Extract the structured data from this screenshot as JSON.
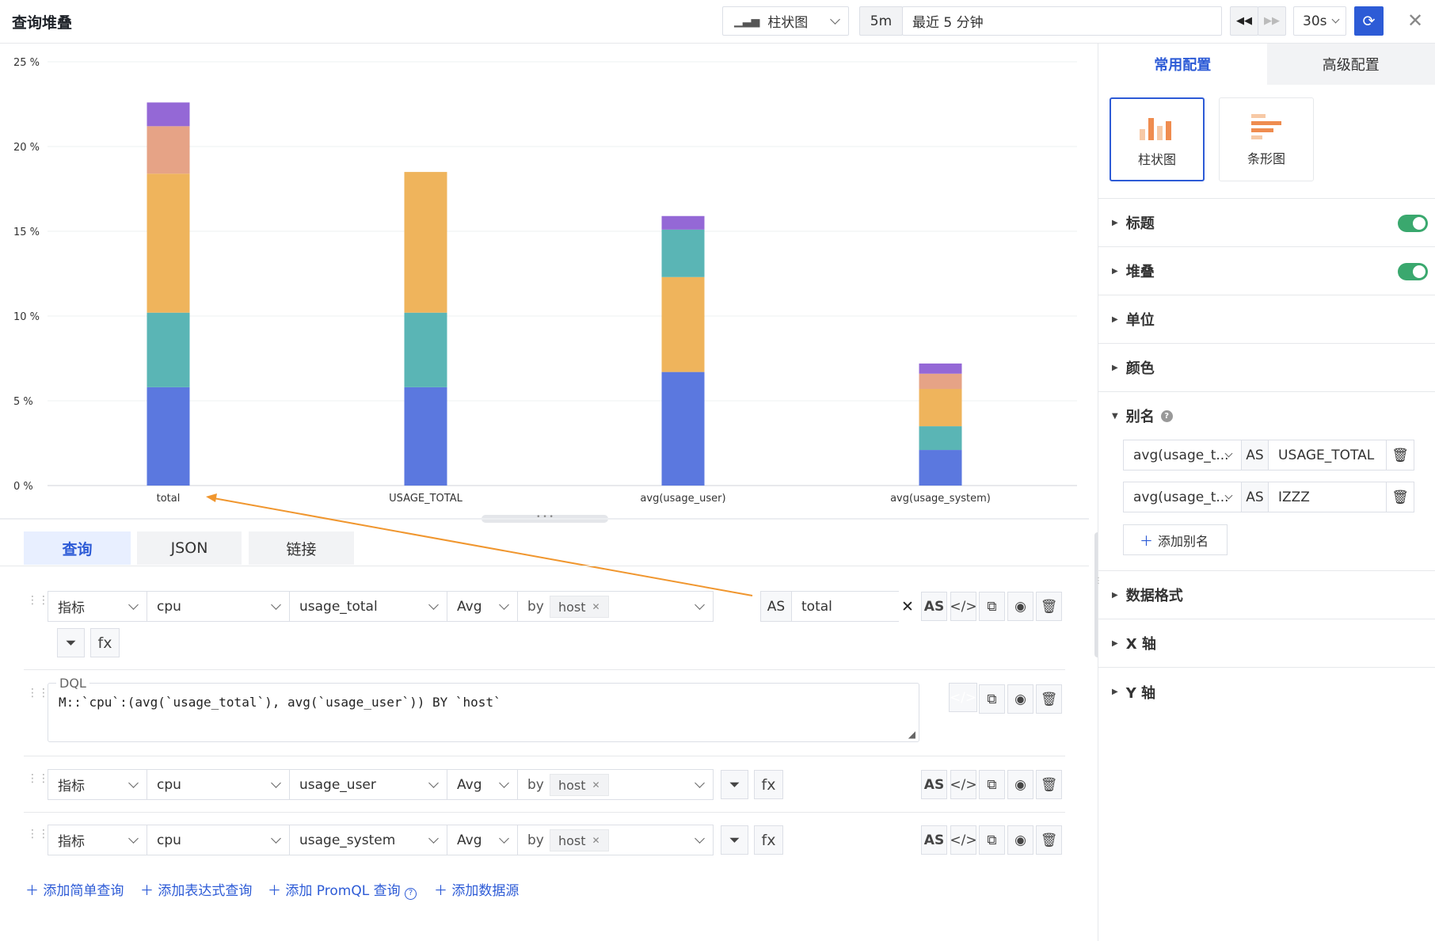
{
  "header": {
    "title": "查询堆叠",
    "chart_type_select": "柱状图",
    "time_short": "5m",
    "time_range": "最近 5 分钟",
    "refresh_interval": "30s"
  },
  "right_panel": {
    "tabs": [
      "常用配置",
      "高级配置"
    ],
    "chart_options": [
      "柱状图",
      "条形图"
    ],
    "sections": {
      "title": "标题",
      "stack": "堆叠",
      "unit": "单位",
      "color": "颜色",
      "alias": "别名",
      "data_format": "数据格式",
      "x_axis": "X 轴",
      "y_axis": "Y 轴"
    },
    "aliases": [
      {
        "source": "avg(usage_t...",
        "as": "AS",
        "target": "USAGE_TOTAL"
      },
      {
        "source": "avg(usage_t...",
        "as": "AS",
        "target": "IZZZ"
      }
    ],
    "add_alias": "添加别名"
  },
  "query_tabs": [
    "查询",
    "JSON",
    "链接"
  ],
  "queries": [
    {
      "type": "指标",
      "measurement": "cpu",
      "field": "usage_total",
      "agg": "Avg",
      "by": "by",
      "group": "host",
      "as_label": "AS",
      "alias": "total"
    },
    {
      "dql_label": "DQL",
      "dql": "M::`cpu`:(avg(`usage_total`), avg(`usage_user`)) BY `host`"
    },
    {
      "type": "指标",
      "measurement": "cpu",
      "field": "usage_user",
      "agg": "Avg",
      "by": "by",
      "group": "host"
    },
    {
      "type": "指标",
      "measurement": "cpu",
      "field": "usage_system",
      "agg": "Avg",
      "by": "by",
      "group": "host"
    }
  ],
  "buttons": {
    "as": "AS",
    "fx": "fx"
  },
  "add_links": [
    "添加简单查询",
    "添加表达式查询",
    "添加 PromQL 查询",
    "添加数据源"
  ],
  "colors": {
    "accent": "#2d5bd6",
    "toggle_on": "#3aa86e",
    "annotation_arrow": "#f0962e"
  },
  "chart_data": {
    "type": "bar",
    "stacked": true,
    "categories": [
      "total",
      "USAGE_TOTAL",
      "avg(usage_user)",
      "avg(usage_system)"
    ],
    "ylim": [
      0,
      25
    ],
    "yticks": [
      "0 %",
      "5 %",
      "10 %",
      "15 %",
      "20 %",
      "25 %"
    ],
    "series": [
      {
        "color": "#5b78df",
        "values": [
          5.8,
          5.8,
          6.7,
          2.1
        ]
      },
      {
        "color": "#5ab5b5",
        "values": [
          4.4,
          4.4,
          0,
          1.4
        ]
      },
      {
        "color": "#efb45c",
        "values": [
          8.2,
          8.3,
          5.6,
          2.2
        ]
      },
      {
        "color": "#e6a386",
        "values": [
          2.8,
          0,
          0,
          0.9
        ]
      },
      {
        "color": "#9468d6",
        "values": [
          1.4,
          0,
          0,
          0.6
        ]
      },
      {
        "color": "#5ab5b5",
        "values": [
          0,
          0,
          2.8,
          0
        ]
      },
      {
        "color": "#9468d6",
        "values": [
          0,
          0,
          0.8,
          0
        ]
      }
    ]
  }
}
